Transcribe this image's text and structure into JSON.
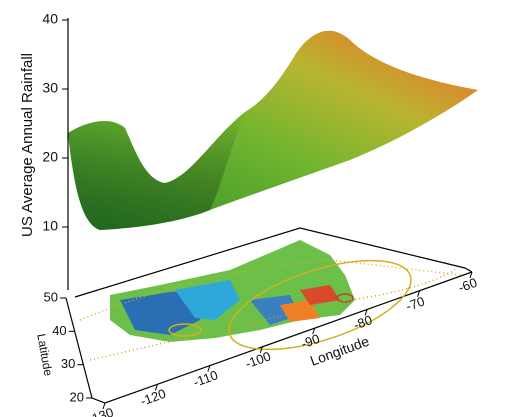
{
  "chart_data": {
    "type": "surface",
    "zlabel": "US Average Annual Rainfall",
    "xlabel": "Longitude",
    "ylabel": "Latitude",
    "xlim": [
      -130,
      -60
    ],
    "xticks": [
      -130,
      -120,
      -110,
      -100,
      -90,
      -80,
      -70,
      -60
    ],
    "ylim": [
      20,
      50
    ],
    "yticks": [
      20,
      30,
      40,
      50
    ],
    "zlim": [
      0,
      40
    ],
    "zticks": [
      10,
      20,
      30,
      40
    ]
  }
}
